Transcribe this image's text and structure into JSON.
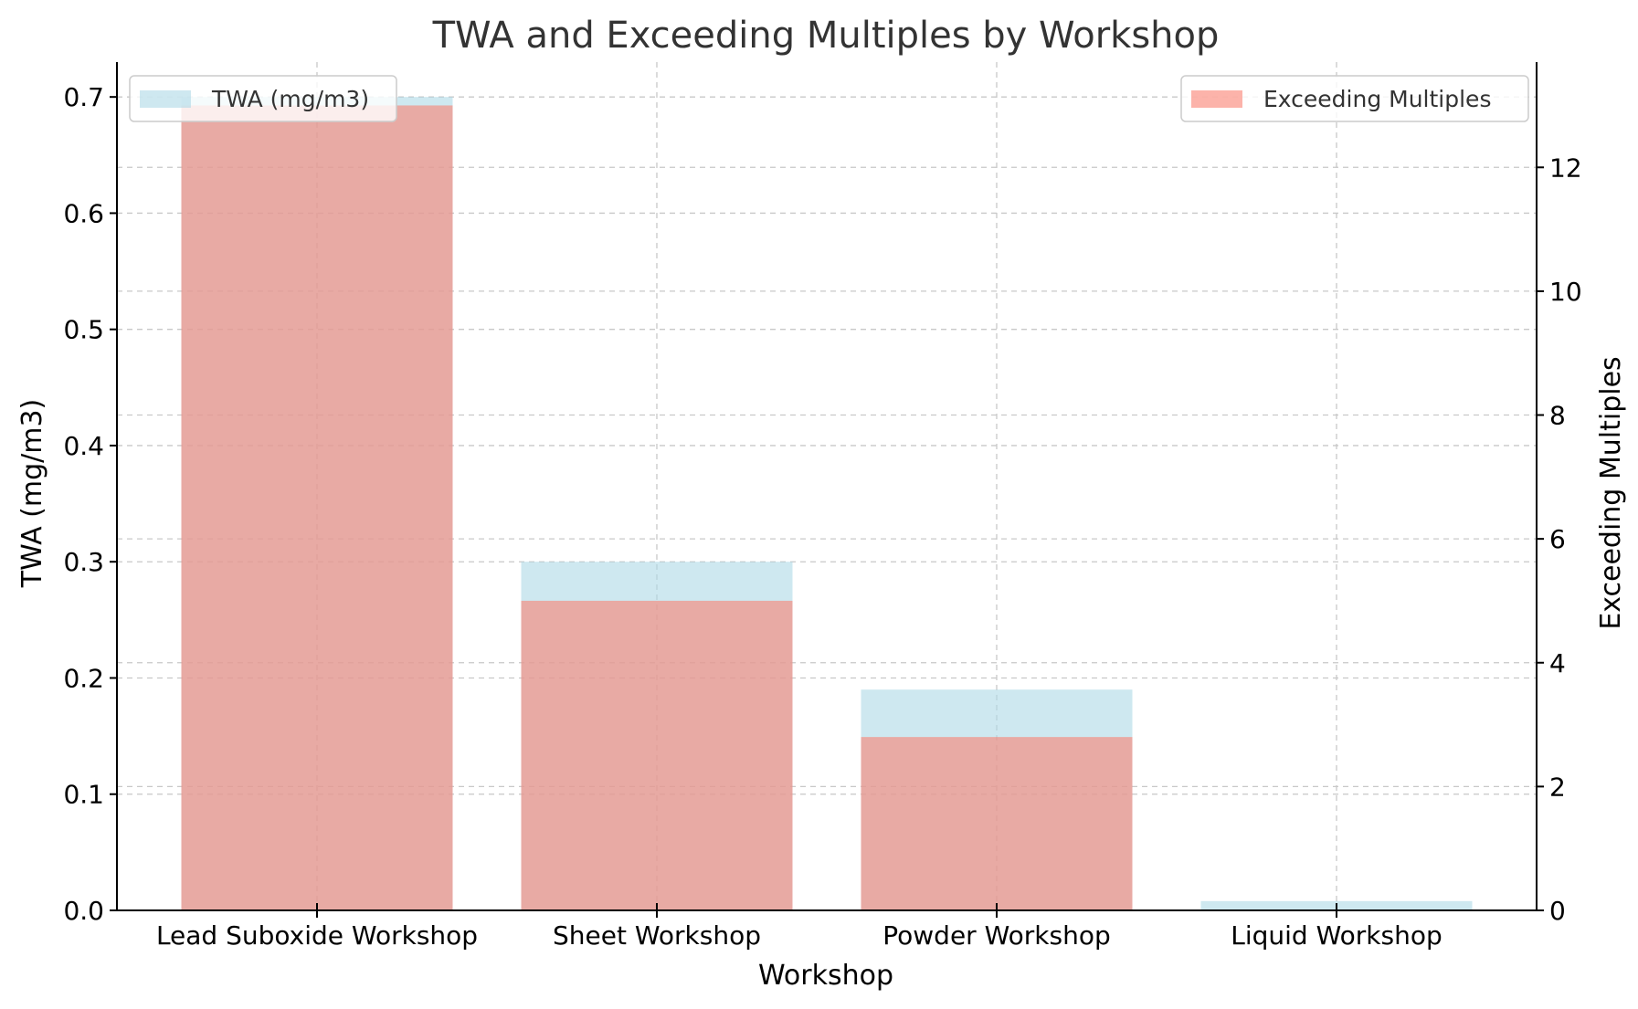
{
  "chart_data": {
    "type": "bar",
    "title": "TWA and Exceeding Multiples by Workshop",
    "xlabel": "Workshop",
    "ylabel": "TWA (mg/m3)",
    "y2label": "Exceeding Multiples",
    "categories": [
      "Lead Suboxide Workshop",
      "Sheet Workshop",
      "Powder Workshop",
      "Liquid Workshop"
    ],
    "series": [
      {
        "name": "TWA (mg/m3)",
        "axis": "left",
        "color": "#add8e6",
        "values": [
          0.7,
          0.3,
          0.19,
          0.008
        ]
      },
      {
        "name": "Exceeding Multiples",
        "axis": "right",
        "color": "#fa8072",
        "values": [
          13,
          5,
          2.8,
          0
        ]
      }
    ],
    "ylim": [
      0,
      0.73
    ],
    "y2lim": [
      0,
      13.7
    ],
    "yticks": [
      "0.0",
      "0.1",
      "0.2",
      "0.3",
      "0.4",
      "0.5",
      "0.6",
      "0.7"
    ],
    "y2ticks": [
      "0",
      "2",
      "4",
      "6",
      "8",
      "10",
      "12"
    ],
    "grid": true,
    "legend_left_position": "upper-left",
    "legend_right_position": "upper-right"
  }
}
